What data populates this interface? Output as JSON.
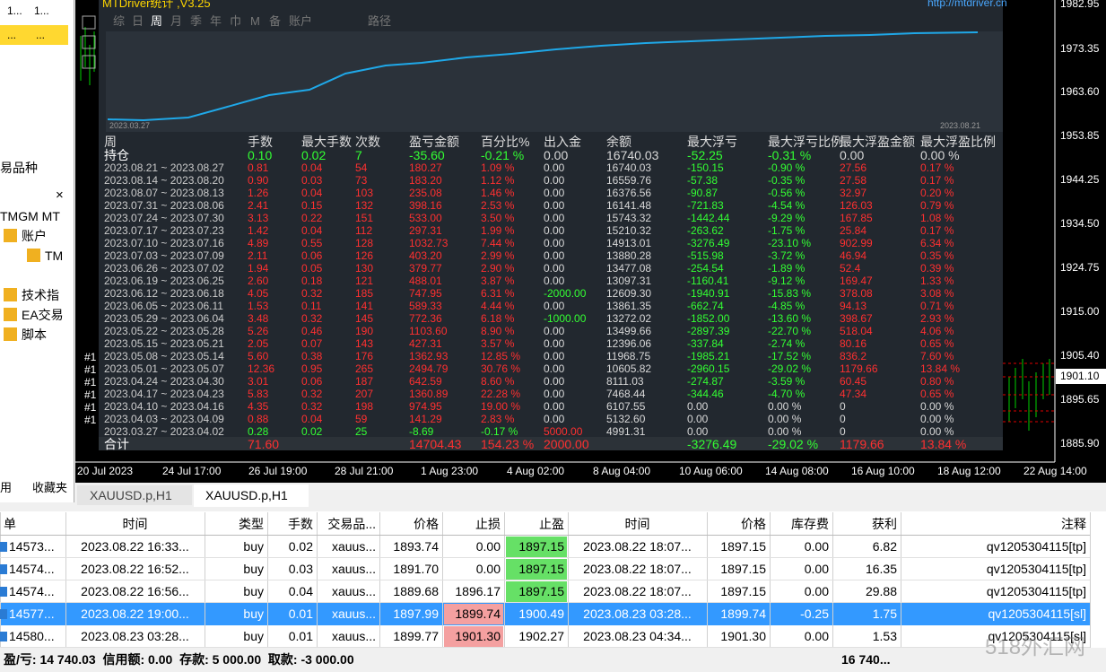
{
  "navigator": {
    "top_cells": [
      "1...",
      "1...",
      "...",
      "..."
    ],
    "tab": "易品种",
    "close": "×",
    "tree": [
      "TMGM MT",
      "账户",
      "TM",
      "技术指",
      "EA交易",
      "脚本"
    ],
    "bottom_tabs": [
      "用",
      "收藏夹"
    ]
  },
  "mtdriver": {
    "title": "MTDriver统计 ,V3.25",
    "url": "http://mtdriver.cn",
    "tabs": [
      "综",
      "日",
      "周",
      "月",
      "季",
      "年",
      "巾",
      "M",
      "备",
      "账户"
    ],
    "path_tab": "路径",
    "curve_start": "2023.03.27",
    "curve_end": "2023.08.21",
    "columns": [
      "周",
      "手数",
      "最大手数",
      "次数",
      "盈亏金额",
      "百分比%",
      "出入金",
      "余额",
      "最大浮亏",
      "最大浮亏比例",
      "最大浮盈金额",
      "最大浮盈比例"
    ],
    "holding": [
      "持仓",
      "0.10",
      "0.02",
      "7",
      "-35.60",
      "-0.21 %",
      "0.00",
      "16740.03",
      "-52.25",
      "-0.31 %",
      "0.00",
      "0.00 %"
    ],
    "rows": [
      [
        "2023.08.21 ~ 2023.08.27",
        "0.81",
        "0.04",
        "54",
        "180.27",
        "1.09 %",
        "0.00",
        "16740.03",
        "-150.15",
        "-0.90 %",
        "27.56",
        "0.17 %"
      ],
      [
        "2023.08.14 ~ 2023.08.20",
        "0.90",
        "0.03",
        "73",
        "183.20",
        "1.12 %",
        "0.00",
        "16559.76",
        "-57.38",
        "-0.35 %",
        "27.58",
        "0.17 %"
      ],
      [
        "2023.08.07 ~ 2023.08.13",
        "1.26",
        "0.04",
        "103",
        "235.08",
        "1.46 %",
        "0.00",
        "16376.56",
        "-90.87",
        "-0.56 %",
        "32.97",
        "0.20 %"
      ],
      [
        "2023.07.31 ~ 2023.08.06",
        "2.41",
        "0.15",
        "132",
        "398.16",
        "2.53 %",
        "0.00",
        "16141.48",
        "-721.83",
        "-4.54 %",
        "126.03",
        "0.79 %"
      ],
      [
        "2023.07.24 ~ 2023.07.30",
        "3.13",
        "0.22",
        "151",
        "533.00",
        "3.50 %",
        "0.00",
        "15743.32",
        "-1442.44",
        "-9.29 %",
        "167.85",
        "1.08 %"
      ],
      [
        "2023.07.17 ~ 2023.07.23",
        "1.42",
        "0.04",
        "112",
        "297.31",
        "1.99 %",
        "0.00",
        "15210.32",
        "-263.62",
        "-1.75 %",
        "25.84",
        "0.17 %"
      ],
      [
        "2023.07.10 ~ 2023.07.16",
        "4.89",
        "0.55",
        "128",
        "1032.73",
        "7.44 %",
        "0.00",
        "14913.01",
        "-3276.49",
        "-23.10 %",
        "902.99",
        "6.34 %"
      ],
      [
        "2023.07.03 ~ 2023.07.09",
        "2.11",
        "0.06",
        "126",
        "403.20",
        "2.99 %",
        "0.00",
        "13880.28",
        "-515.98",
        "-3.72 %",
        "46.94",
        "0.35 %"
      ],
      [
        "2023.06.26 ~ 2023.07.02",
        "1.94",
        "0.05",
        "130",
        "379.77",
        "2.90 %",
        "0.00",
        "13477.08",
        "-254.54",
        "-1.89 %",
        "52.4",
        "0.39 %"
      ],
      [
        "2023.06.19 ~ 2023.06.25",
        "2.60",
        "0.18",
        "121",
        "488.01",
        "3.87 %",
        "0.00",
        "13097.31",
        "-1160.41",
        "-9.12 %",
        "169.47",
        "1.33 %"
      ],
      [
        "2023.06.12 ~ 2023.06.18",
        "4.05",
        "0.32",
        "185",
        "747.95",
        "6.31 %",
        "-2000.00",
        "12609.30",
        "-1940.91",
        "-15.83 %",
        "378.08",
        "3.08 %"
      ],
      [
        "2023.06.05 ~ 2023.06.11",
        "1.53",
        "0.11",
        "141",
        "589.33",
        "4.44 %",
        "0.00",
        "13861.35",
        "-662.74",
        "-4.85 %",
        "94.13",
        "0.71 %"
      ],
      [
        "2023.05.29 ~ 2023.06.04",
        "3.48",
        "0.32",
        "145",
        "772.36",
        "6.18 %",
        "-1000.00",
        "13272.02",
        "-1852.00",
        "-13.60 %",
        "398.67",
        "2.93 %"
      ],
      [
        "2023.05.22 ~ 2023.05.28",
        "5.26",
        "0.46",
        "190",
        "1103.60",
        "8.90 %",
        "0.00",
        "13499.66",
        "-2897.39",
        "-22.70 %",
        "518.04",
        "4.06 %"
      ],
      [
        "2023.05.15 ~ 2023.05.21",
        "2.05",
        "0.07",
        "143",
        "427.31",
        "3.57 %",
        "0.00",
        "12396.06",
        "-337.84",
        "-2.74 %",
        "80.16",
        "0.65 %"
      ],
      [
        "2023.05.08 ~ 2023.05.14",
        "5.60",
        "0.38",
        "176",
        "1362.93",
        "12.85 %",
        "0.00",
        "11968.75",
        "-1985.21",
        "-17.52 %",
        "836.2",
        "7.60 %"
      ],
      [
        "2023.05.01 ~ 2023.05.07",
        "12.36",
        "0.95",
        "265",
        "2494.79",
        "30.76 %",
        "0.00",
        "10605.82",
        "-2960.15",
        "-29.02 %",
        "1179.66",
        "13.84 %"
      ],
      [
        "2023.04.24 ~ 2023.04.30",
        "3.01",
        "0.06",
        "187",
        "642.59",
        "8.60 %",
        "0.00",
        "8111.03",
        "-274.87",
        "-3.59 %",
        "60.45",
        "0.80 %"
      ],
      [
        "2023.04.17 ~ 2023.04.23",
        "5.83",
        "0.32",
        "207",
        "1360.89",
        "22.28 %",
        "0.00",
        "7468.44",
        "-344.46",
        "-4.70 %",
        "47.34",
        "0.65 %"
      ],
      [
        "2023.04.10 ~ 2023.04.16",
        "4.35",
        "0.32",
        "198",
        "974.95",
        "19.00 %",
        "0.00",
        "6107.55",
        "0.00",
        "0.00 %",
        "0",
        "0.00 %"
      ],
      [
        "2023.04.03 ~ 2023.04.09",
        "0.88",
        "0.04",
        "59",
        "141.29",
        "2.83 %",
        "0.00",
        "5132.60",
        "0.00",
        "0.00 %",
        "0",
        "0.00 %"
      ],
      [
        "2023.03.27 ~ 2023.04.02",
        "0.28",
        "0.02",
        "25",
        "-8.69",
        "-0.17 %",
        "5000.00",
        "4991.31",
        "0.00",
        "0.00 %",
        "0",
        "0.00 %"
      ]
    ],
    "total": [
      "合计",
      "71.60",
      null,
      null,
      "14704.43",
      "154.23 %",
      "2000.00",
      null,
      "-3276.49",
      "-29.02 %",
      "1179.66",
      "13.84 %"
    ]
  },
  "chart": {
    "price_labels": [
      "1982.95",
      "1973.35",
      "1963.60",
      "1953.85",
      "1944.25",
      "1934.50",
      "1924.75",
      "1915.00",
      "1905.40",
      "1895.65",
      "1885.90"
    ],
    "current_price": "1901.10",
    "time_labels": [
      "20 Jul 2023",
      "24 Jul 17:00",
      "26 Jul 19:00",
      "28 Jul 21:00",
      "1 Aug 23:00",
      "4 Aug 02:00",
      "8 Aug 04:00",
      "10 Aug 06:00",
      "14 Aug 08:00",
      "16 Aug 10:00",
      "18 Aug 12:00",
      "22 Aug 14:00"
    ],
    "object_labels": [
      "#1",
      "#1",
      "#1",
      "#1",
      "#1",
      "#1"
    ]
  },
  "symbol_tabs": [
    "XAUUSD.p,H1",
    "XAUUSD.p,H1"
  ],
  "orders": {
    "columns": [
      "单",
      "时间",
      "类型",
      "手数",
      "交易品...",
      "价格",
      "止损",
      "止盈",
      "时间",
      "价格",
      "库存费",
      "获利",
      "注释"
    ],
    "rows": [
      [
        "14573...",
        "2023.08.22 16:33...",
        "buy",
        "0.02",
        "xauus...",
        "1893.74",
        "0.00",
        "1897.15",
        "2023.08.22 18:07...",
        "1897.15",
        "0.00",
        "6.82",
        "qv1205304115[tp]"
      ],
      [
        "14574...",
        "2023.08.22 16:52...",
        "buy",
        "0.03",
        "xauus...",
        "1891.70",
        "0.00",
        "1897.15",
        "2023.08.22 18:07...",
        "1897.15",
        "0.00",
        "16.35",
        "qv1205304115[tp]"
      ],
      [
        "14574...",
        "2023.08.22 16:56...",
        "buy",
        "0.04",
        "xauus...",
        "1889.68",
        "1896.17",
        "1897.15",
        "2023.08.22 18:07...",
        "1897.15",
        "0.00",
        "29.88",
        "qv1205304115[tp]"
      ],
      [
        "14577...",
        "2023.08.22 19:00...",
        "buy",
        "0.01",
        "xauus...",
        "1897.99",
        "1899.74",
        "1900.49",
        "2023.08.23 03:28...",
        "1899.74",
        "-0.25",
        "1.75",
        "qv1205304115[sl]"
      ],
      [
        "14580...",
        "2023.08.23 03:28...",
        "buy",
        "0.01",
        "xauus...",
        "1899.77",
        "1901.30",
        "1902.27",
        "2023.08.23 04:34...",
        "1901.30",
        "0.00",
        "1.53",
        "qv1205304115[sl]"
      ]
    ]
  },
  "status": {
    "text": "盈/亏: 14 740.03  信用额: 0.00  存款: 5 000.00  取款: -3 000.00",
    "profit": "16 740..."
  },
  "watermark": "518外汇网"
}
